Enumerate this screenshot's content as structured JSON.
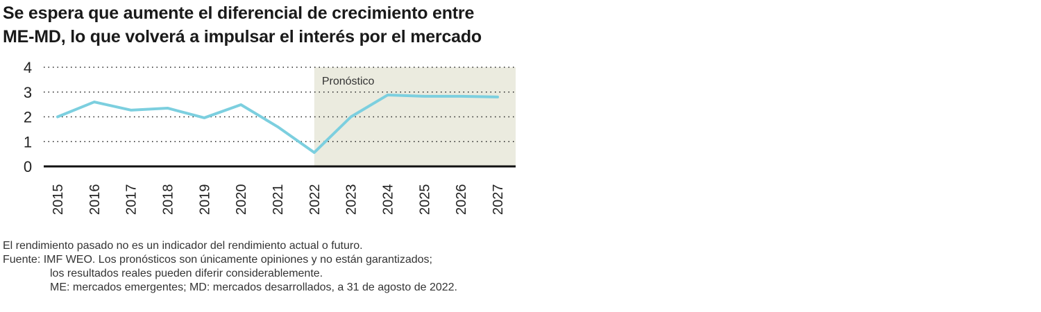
{
  "title_lines": [
    "Se espera que aumente el diferencial de crecimiento entre",
    "ME-MD, lo que volverá a impulsar el interés por el mercado"
  ],
  "chart_data": {
    "type": "line",
    "title": "Se espera que aumente el diferencial de crecimiento entre ME-MD, lo que volverá a impulsar el interés por el mercado",
    "categories": [
      "2015",
      "2016",
      "2017",
      "2018",
      "2019",
      "2020",
      "2021",
      "2022",
      "2023",
      "2024",
      "2025",
      "2026",
      "2027"
    ],
    "series": [
      {
        "name": "Diferencial de crecimiento ME-MD",
        "values": [
          2.0,
          2.6,
          2.27,
          2.35,
          1.96,
          2.49,
          1.6,
          0.56,
          2.0,
          2.88,
          2.83,
          2.83,
          2.8
        ]
      }
    ],
    "yticks": [
      0,
      1,
      2,
      3,
      4
    ],
    "ylim": [
      0,
      4
    ],
    "forecast_start": "2022",
    "forecast_label": "Pronóstico",
    "grid": true,
    "colors": {
      "line": "#7ccfdf",
      "forecast_bg": "#ebebdf"
    }
  },
  "notes": [
    "El rendimiento pasado no es un indicador del rendimiento actual o futuro.",
    "Fuente: IMF WEO. Los pronósticos son únicamente opiniones y no están garantizados;",
    "los resultados reales pueden diferir considerablemente.",
    "ME: mercados emergentes; MD: mercados desarrollados, a 31 de agosto de 2022."
  ]
}
